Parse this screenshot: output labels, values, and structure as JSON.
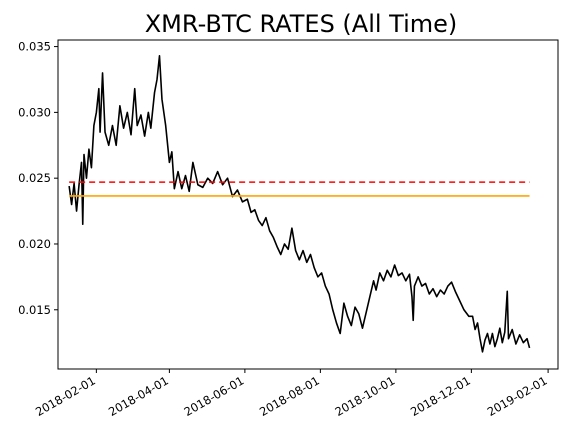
{
  "chart_data": {
    "type": "line",
    "title": "XMR-BTC RATES (All Time)",
    "xlabel": "",
    "ylabel": "",
    "x_tick_labels": [
      "2018-02-01",
      "2018-04-01",
      "2018-06-01",
      "2018-08-01",
      "2018-10-01",
      "2018-12-01",
      "2019-02-01"
    ],
    "y_tick_labels": [
      "0.015",
      "0.020",
      "0.025",
      "0.030",
      "0.035"
    ],
    "y_ticks": [
      0.015,
      0.02,
      0.025,
      0.03,
      0.035
    ],
    "xlim": [
      "2018-01-01",
      "2019-02-09"
    ],
    "ylim": [
      0.0105,
      0.0355
    ],
    "grid": false,
    "series": [
      {
        "color": "#000000",
        "style": "solid",
        "points": [
          [
            "2018-01-10",
            0.0244
          ],
          [
            "2018-01-12",
            0.023
          ],
          [
            "2018-01-14",
            0.0246
          ],
          [
            "2018-01-16",
            0.0225
          ],
          [
            "2018-01-18",
            0.0245
          ],
          [
            "2018-01-20",
            0.0262
          ],
          [
            "2018-01-21",
            0.0215
          ],
          [
            "2018-01-22",
            0.0268
          ],
          [
            "2018-01-24",
            0.025
          ],
          [
            "2018-01-26",
            0.0272
          ],
          [
            "2018-01-28",
            0.0258
          ],
          [
            "2018-01-30",
            0.029
          ],
          [
            "2018-02-01",
            0.03
          ],
          [
            "2018-02-03",
            0.0318
          ],
          [
            "2018-02-04",
            0.0285
          ],
          [
            "2018-02-06",
            0.033
          ],
          [
            "2018-02-08",
            0.0285
          ],
          [
            "2018-02-11",
            0.0275
          ],
          [
            "2018-02-14",
            0.029
          ],
          [
            "2018-02-17",
            0.0275
          ],
          [
            "2018-02-20",
            0.0305
          ],
          [
            "2018-02-23",
            0.0288
          ],
          [
            "2018-02-26",
            0.03
          ],
          [
            "2018-03-01",
            0.0283
          ],
          [
            "2018-03-04",
            0.0318
          ],
          [
            "2018-03-06",
            0.029
          ],
          [
            "2018-03-09",
            0.0298
          ],
          [
            "2018-03-12",
            0.0282
          ],
          [
            "2018-03-15",
            0.03
          ],
          [
            "2018-03-17",
            0.0288
          ],
          [
            "2018-03-20",
            0.0315
          ],
          [
            "2018-03-22",
            0.0325
          ],
          [
            "2018-03-24",
            0.0343
          ],
          [
            "2018-03-26",
            0.031
          ],
          [
            "2018-03-29",
            0.029
          ],
          [
            "2018-04-01",
            0.0262
          ],
          [
            "2018-04-03",
            0.027
          ],
          [
            "2018-04-05",
            0.0242
          ],
          [
            "2018-04-08",
            0.0255
          ],
          [
            "2018-04-11",
            0.0242
          ],
          [
            "2018-04-14",
            0.0252
          ],
          [
            "2018-04-17",
            0.024
          ],
          [
            "2018-04-20",
            0.0262
          ],
          [
            "2018-04-24",
            0.0245
          ],
          [
            "2018-04-28",
            0.0243
          ],
          [
            "2018-05-02",
            0.025
          ],
          [
            "2018-05-06",
            0.0246
          ],
          [
            "2018-05-10",
            0.0255
          ],
          [
            "2018-05-14",
            0.0245
          ],
          [
            "2018-05-18",
            0.025
          ],
          [
            "2018-05-22",
            0.0236
          ],
          [
            "2018-05-26",
            0.0241
          ],
          [
            "2018-05-30",
            0.0232
          ],
          [
            "2018-06-03",
            0.0234
          ],
          [
            "2018-06-06",
            0.0224
          ],
          [
            "2018-06-09",
            0.0226
          ],
          [
            "2018-06-12",
            0.0218
          ],
          [
            "2018-06-15",
            0.0214
          ],
          [
            "2018-06-18",
            0.022
          ],
          [
            "2018-06-21",
            0.021
          ],
          [
            "2018-06-24",
            0.0205
          ],
          [
            "2018-06-27",
            0.0198
          ],
          [
            "2018-06-30",
            0.0192
          ],
          [
            "2018-07-03",
            0.02
          ],
          [
            "2018-07-06",
            0.0196
          ],
          [
            "2018-07-09",
            0.0212
          ],
          [
            "2018-07-12",
            0.0195
          ],
          [
            "2018-07-15",
            0.0188
          ],
          [
            "2018-07-18",
            0.0195
          ],
          [
            "2018-07-21",
            0.0186
          ],
          [
            "2018-07-24",
            0.0192
          ],
          [
            "2018-07-27",
            0.0182
          ],
          [
            "2018-07-30",
            0.0175
          ],
          [
            "2018-08-02",
            0.0178
          ],
          [
            "2018-08-05",
            0.0168
          ],
          [
            "2018-08-08",
            0.0162
          ],
          [
            "2018-08-11",
            0.015
          ],
          [
            "2018-08-14",
            0.014
          ],
          [
            "2018-08-17",
            0.0132
          ],
          [
            "2018-08-20",
            0.0155
          ],
          [
            "2018-08-23",
            0.0145
          ],
          [
            "2018-08-26",
            0.0138
          ],
          [
            "2018-08-29",
            0.0152
          ],
          [
            "2018-09-01",
            0.0147
          ],
          [
            "2018-09-04",
            0.0136
          ],
          [
            "2018-09-07",
            0.0148
          ],
          [
            "2018-09-10",
            0.016
          ],
          [
            "2018-09-13",
            0.0172
          ],
          [
            "2018-09-15",
            0.0165
          ],
          [
            "2018-09-18",
            0.0178
          ],
          [
            "2018-09-21",
            0.0172
          ],
          [
            "2018-09-24",
            0.018
          ],
          [
            "2018-09-27",
            0.0175
          ],
          [
            "2018-09-30",
            0.0184
          ],
          [
            "2018-10-03",
            0.0176
          ],
          [
            "2018-10-06",
            0.0178
          ],
          [
            "2018-10-09",
            0.0172
          ],
          [
            "2018-10-12",
            0.0177
          ],
          [
            "2018-10-14",
            0.016
          ],
          [
            "2018-10-15",
            0.0142
          ],
          [
            "2018-10-16",
            0.0168
          ],
          [
            "2018-10-19",
            0.0175
          ],
          [
            "2018-10-22",
            0.0168
          ],
          [
            "2018-10-25",
            0.017
          ],
          [
            "2018-10-28",
            0.0162
          ],
          [
            "2018-10-31",
            0.0166
          ],
          [
            "2018-11-03",
            0.016
          ],
          [
            "2018-11-06",
            0.0165
          ],
          [
            "2018-11-09",
            0.0162
          ],
          [
            "2018-11-12",
            0.0168
          ],
          [
            "2018-11-15",
            0.0171
          ],
          [
            "2018-11-18",
            0.0164
          ],
          [
            "2018-11-21",
            0.0158
          ],
          [
            "2018-11-25",
            0.015
          ],
          [
            "2018-11-29",
            0.0145
          ],
          [
            "2018-12-02",
            0.0145
          ],
          [
            "2018-12-04",
            0.0135
          ],
          [
            "2018-12-06",
            0.014
          ],
          [
            "2018-12-08",
            0.0128
          ],
          [
            "2018-12-10",
            0.0118
          ],
          [
            "2018-12-12",
            0.0127
          ],
          [
            "2018-12-14",
            0.0132
          ],
          [
            "2018-12-16",
            0.0124
          ],
          [
            "2018-12-18",
            0.0132
          ],
          [
            "2018-12-20",
            0.0122
          ],
          [
            "2018-12-22",
            0.0128
          ],
          [
            "2018-12-24",
            0.0136
          ],
          [
            "2018-12-26",
            0.0125
          ],
          [
            "2018-12-28",
            0.0133
          ],
          [
            "2018-12-30",
            0.0164
          ],
          [
            "2018-12-31",
            0.0128
          ],
          [
            "2019-01-03",
            0.0135
          ],
          [
            "2019-01-06",
            0.0124
          ],
          [
            "2019-01-09",
            0.0131
          ],
          [
            "2019-01-12",
            0.0125
          ],
          [
            "2019-01-15",
            0.0128
          ],
          [
            "2019-01-17",
            0.0121
          ]
        ]
      },
      {
        "color": "#ff0000",
        "style": "dashed",
        "points": [
          [
            "2018-01-10",
            0.0247
          ],
          [
            "2019-01-17",
            0.0247
          ]
        ]
      },
      {
        "color": "#ffa500",
        "style": "solid",
        "points": [
          [
            "2018-01-10",
            0.02365
          ],
          [
            "2019-01-17",
            0.02365
          ]
        ]
      }
    ]
  }
}
